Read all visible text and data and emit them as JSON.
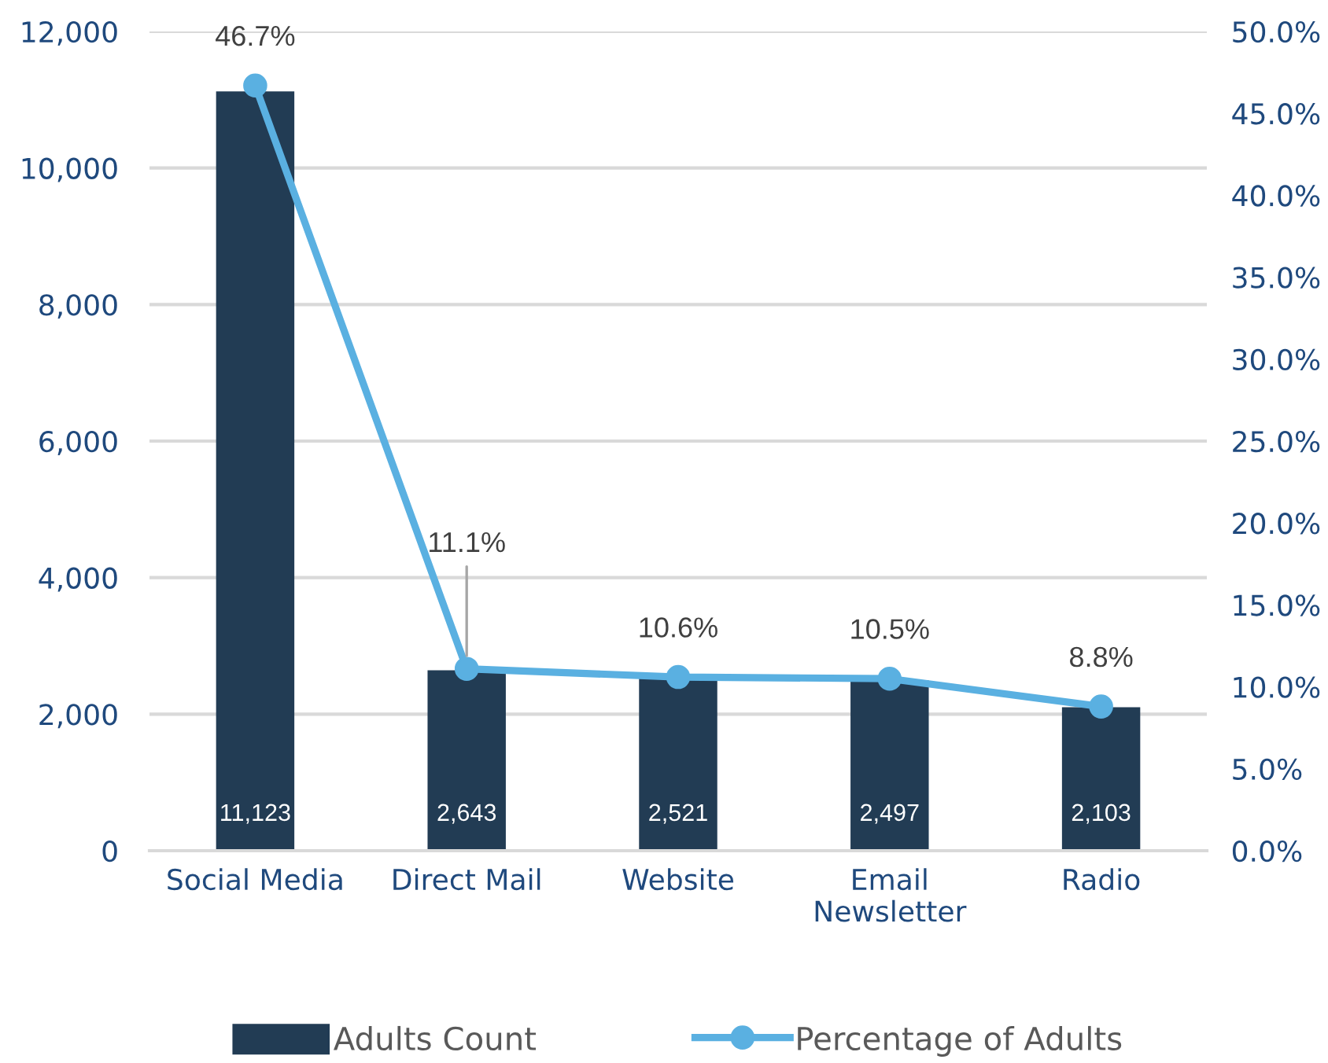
{
  "chart_data": {
    "type": "bar",
    "categories": [
      "Social Media",
      "Direct Mail",
      "Website",
      "Email Newsletter",
      "Radio"
    ],
    "series": [
      {
        "name": "Adults Count",
        "color": "#223c54",
        "values": [
          11123,
          2643,
          2521,
          2497,
          2103
        ],
        "value_labels": [
          "11,123",
          "2,643",
          "2,521",
          "2,497",
          "2,103"
        ]
      },
      {
        "name": "Percentage of Adults",
        "type": "line",
        "axis": "y2",
        "color": "#5ab0e1",
        "values": [
          46.7,
          11.1,
          10.6,
          10.5,
          8.8
        ],
        "value_labels": [
          "46.7%",
          "11.1%",
          "10.6%",
          "10.5%",
          "8.8%"
        ]
      }
    ],
    "ylim": [
      0,
      12000
    ],
    "yticks": [
      0,
      {
        "value": 2000,
        "label": "2,000"
      },
      {
        "value": 4000,
        "label": "4,000"
      },
      {
        "value": 6000,
        "label": "6,000"
      },
      {
        "value": 8000,
        "label": "8,000"
      },
      {
        "value": 10000,
        "label": "10,000"
      },
      {
        "value": 12000,
        "label": "12,000"
      }
    ],
    "y2lim": [
      0,
      50
    ],
    "y2ticks": [
      {
        "value": 0,
        "label": "0.0%"
      },
      {
        "value": 5,
        "label": "5.0%"
      },
      {
        "value": 10,
        "label": "10.0%"
      },
      {
        "value": 15,
        "label": "15.0%"
      },
      {
        "value": 20,
        "label": "20.0%"
      },
      {
        "value": 25,
        "label": "25.0%"
      },
      {
        "value": 30,
        "label": "30.0%"
      },
      {
        "value": 35,
        "label": "35.0%"
      },
      {
        "value": 40,
        "label": "40.0%"
      },
      {
        "value": 45,
        "label": "45.0%"
      },
      {
        "value": 50,
        "label": "50.0%"
      }
    ],
    "grid": "y",
    "legend": "bottom",
    "marker": "circle"
  }
}
